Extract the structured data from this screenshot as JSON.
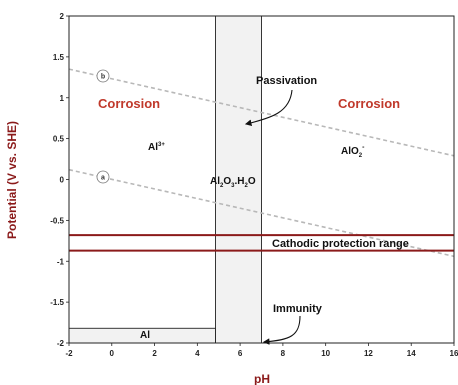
{
  "chart_data": {
    "type": "pourbaix",
    "xlabel": "pH",
    "ylabel": "Potential (V vs. SHE)",
    "xlim": [
      -2,
      16
    ],
    "ylim": [
      -2,
      2
    ],
    "xticks": [
      "-2",
      "0",
      "2",
      "4",
      "6",
      "8",
      "10",
      "12",
      "14",
      "16"
    ],
    "yticks": [
      "2",
      "1.5",
      "1",
      "0.5",
      "0",
      "-0.5",
      "-1",
      "-1.5",
      "-2"
    ],
    "water_lines": [
      {
        "name": "b",
        "x": [
          -2,
          16
        ],
        "y": [
          1.35,
          0.29
        ]
      },
      {
        "name": "a",
        "x": [
          -2,
          16
        ],
        "y": [
          0.12,
          -0.94
        ]
      }
    ],
    "passivation_region": {
      "x": [
        4.85,
        7.0
      ],
      "y": [
        -2,
        2
      ]
    },
    "immunity_region": {
      "x": [
        -2,
        4.85
      ],
      "y": [
        -2,
        -1.82
      ]
    },
    "cathodic_protection_range": {
      "y": [
        -0.68,
        -0.87
      ]
    },
    "labels": {
      "corrosion_left": "Corrosion",
      "corrosion_right": "Corrosion",
      "passivation": "Passivation",
      "immunity": "Immunity",
      "cathodic": "Cathodic protection range",
      "al3_base": "Al",
      "al3_sup": "3+",
      "alo2_base": "AlO",
      "alo2_sub": "2",
      "alo2_sup": "-",
      "oxide_a": "Al",
      "oxide_a_sub": "2",
      "oxide_b": "O",
      "oxide_b_sub": "3",
      "oxide_c": ".H",
      "oxide_c_sub": "2",
      "oxide_d": "O",
      "al_metal": "Al",
      "marker_b": "b",
      "marker_a": "a"
    },
    "colors": {
      "corrosion": "#c0392b",
      "cathodic_lines": "#8b1a1a",
      "water_lines": "#b8b8b8",
      "region_fill": "#f2f2f2",
      "axis_title": "#8b1a1a"
    }
  }
}
